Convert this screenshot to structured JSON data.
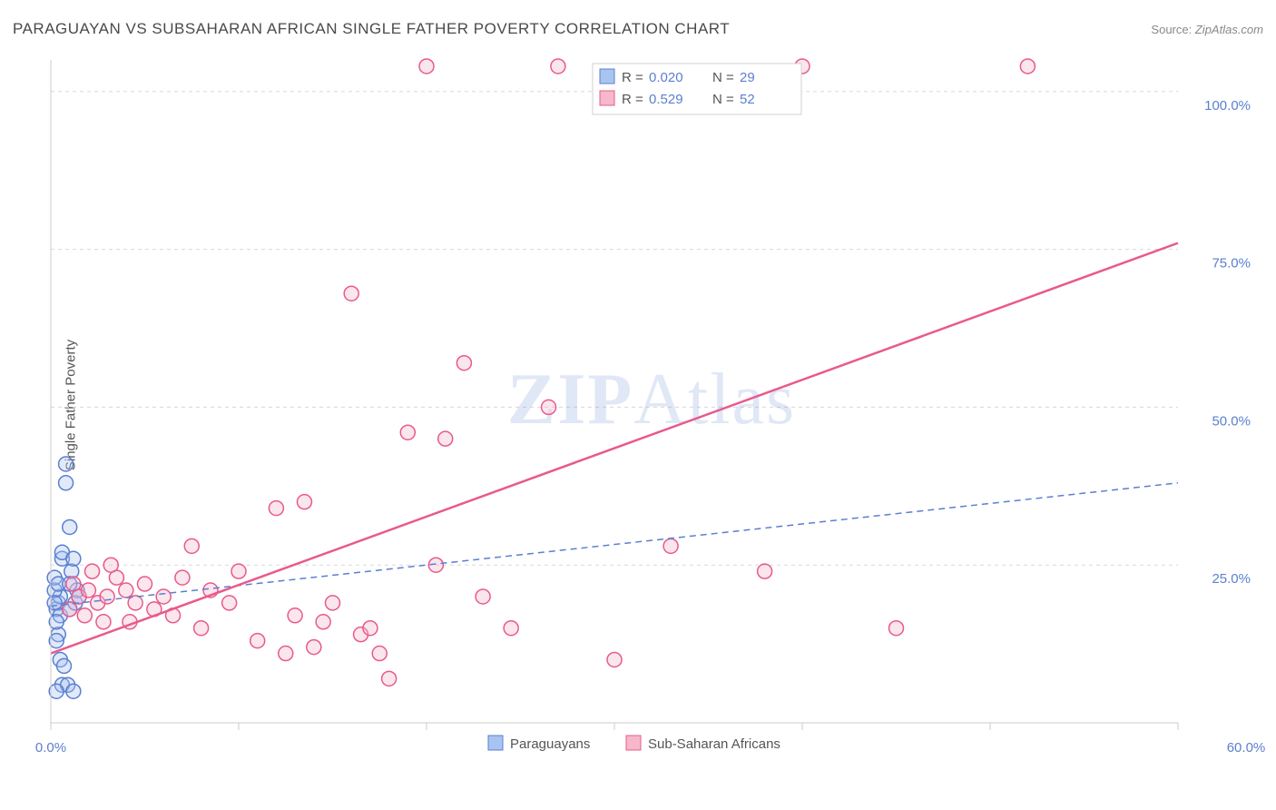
{
  "title": "PARAGUAYAN VS SUBSAHARAN AFRICAN SINGLE FATHER POVERTY CORRELATION CHART",
  "source_label": "Source:",
  "source_value": "ZipAtlas.com",
  "y_axis_label": "Single Father Poverty",
  "watermark_bold": "ZIP",
  "watermark_light": "Atlas",
  "chart": {
    "type": "scatter",
    "xlim": [
      0,
      60
    ],
    "ylim": [
      0,
      105
    ],
    "x_ticks": [
      0,
      10,
      20,
      30,
      40,
      50,
      60
    ],
    "x_tick_labels": [
      "0.0%",
      "",
      "",
      "",
      "",
      "",
      "60.0%"
    ],
    "y_ticks": [
      25,
      50,
      75,
      100
    ],
    "y_tick_labels": [
      "25.0%",
      "50.0%",
      "75.0%",
      "100.0%"
    ],
    "background_color": "#ffffff",
    "grid_color": "#d8d8d8",
    "axis_color": "#cccccc",
    "label_color": "#5b7fd1",
    "marker_radius": 8,
    "marker_opacity": 0.35,
    "series": [
      {
        "id": "paraguayans",
        "label": "Paraguayans",
        "color_fill": "#a8c4f0",
        "color_stroke": "#5b7fd1",
        "R": "0.020",
        "N": "29",
        "trend": {
          "style": "dashed",
          "x1": 0,
          "y1": 18.5,
          "x2": 60,
          "y2": 38
        },
        "points": [
          [
            0.3,
            18
          ],
          [
            0.4,
            19
          ],
          [
            0.5,
            20
          ],
          [
            0.5,
            17
          ],
          [
            0.6,
            26
          ],
          [
            0.6,
            27
          ],
          [
            0.8,
            38
          ],
          [
            0.8,
            41
          ],
          [
            1.0,
            31
          ],
          [
            1.0,
            18
          ],
          [
            1.1,
            24
          ],
          [
            1.2,
            26
          ],
          [
            0.4,
            14
          ],
          [
            0.5,
            10
          ],
          [
            0.7,
            9
          ],
          [
            0.6,
            6
          ],
          [
            0.9,
            6
          ],
          [
            1.2,
            5
          ],
          [
            0.3,
            5
          ],
          [
            1.3,
            19
          ],
          [
            1.4,
            21
          ],
          [
            1.5,
            20
          ],
          [
            0.2,
            21
          ],
          [
            0.2,
            23
          ],
          [
            0.2,
            19
          ],
          [
            0.3,
            16
          ],
          [
            0.3,
            13
          ],
          [
            0.4,
            22
          ],
          [
            1.0,
            22
          ]
        ]
      },
      {
        "id": "subsaharan",
        "label": "Sub-Saharan Africans",
        "color_fill": "#f7b8cb",
        "color_stroke": "#e85a8a",
        "R": "0.529",
        "N": "52",
        "trend": {
          "style": "solid",
          "x1": 0,
          "y1": 11,
          "x2": 60,
          "y2": 76
        },
        "points": [
          [
            1.0,
            18
          ],
          [
            1.2,
            22
          ],
          [
            1.5,
            20
          ],
          [
            1.8,
            17
          ],
          [
            2.0,
            21
          ],
          [
            2.2,
            24
          ],
          [
            2.5,
            19
          ],
          [
            3.0,
            20
          ],
          [
            3.5,
            23
          ],
          [
            4.0,
            21
          ],
          [
            4.5,
            19
          ],
          [
            5.0,
            22
          ],
          [
            5.5,
            18
          ],
          [
            6.0,
            20
          ],
          [
            7.0,
            23
          ],
          [
            7.5,
            28
          ],
          [
            8.5,
            21
          ],
          [
            9.5,
            19
          ],
          [
            10.0,
            24
          ],
          [
            11.0,
            13
          ],
          [
            12.0,
            34
          ],
          [
            12.5,
            11
          ],
          [
            13.0,
            17
          ],
          [
            13.5,
            35
          ],
          [
            14.0,
            12
          ],
          [
            14.5,
            16
          ],
          [
            15.0,
            19
          ],
          [
            16.0,
            68
          ],
          [
            16.5,
            14
          ],
          [
            17.0,
            15
          ],
          [
            18.0,
            7
          ],
          [
            19.0,
            46
          ],
          [
            20.0,
            104
          ],
          [
            20.5,
            25
          ],
          [
            21.0,
            45
          ],
          [
            22.0,
            57
          ],
          [
            23.0,
            20
          ],
          [
            24.5,
            15
          ],
          [
            27.0,
            104
          ],
          [
            30.0,
            10
          ],
          [
            33.0,
            28
          ],
          [
            38.0,
            24
          ],
          [
            40.0,
            104
          ],
          [
            45.0,
            15
          ],
          [
            52.0,
            104
          ],
          [
            2.8,
            16
          ],
          [
            3.2,
            25
          ],
          [
            4.2,
            16
          ],
          [
            6.5,
            17
          ],
          [
            8.0,
            15
          ],
          [
            26.5,
            50
          ],
          [
            17.5,
            11
          ]
        ]
      }
    ],
    "stat_box": {
      "R_label": "R =",
      "N_label": "N ="
    }
  }
}
